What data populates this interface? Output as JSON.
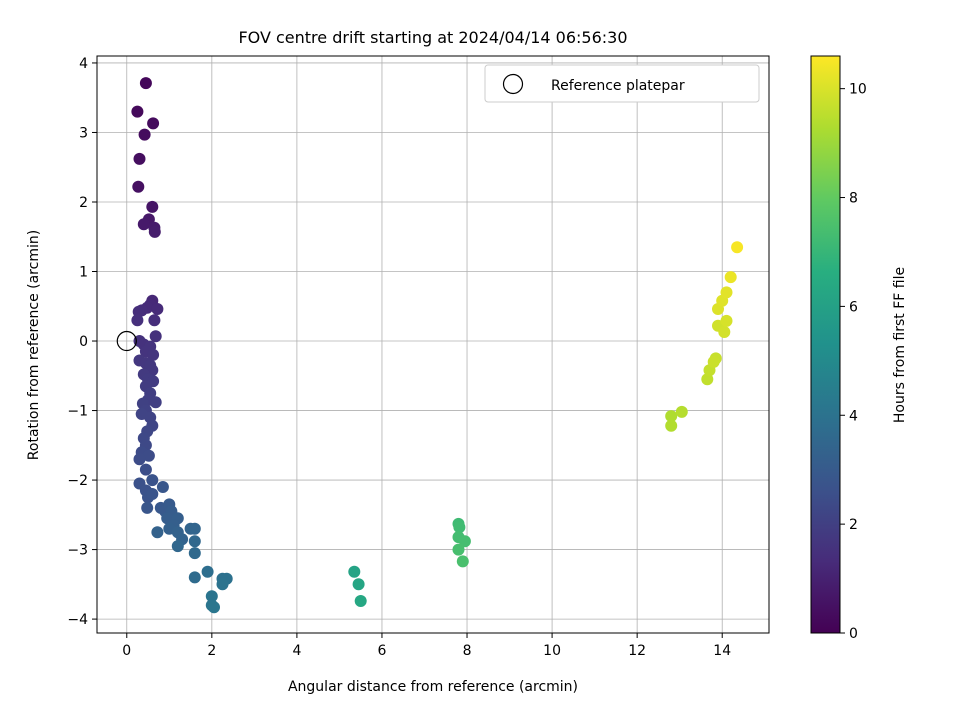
{
  "chart_data": {
    "type": "scatter",
    "title": "FOV centre drift starting at 2024/04/14 06:56:30",
    "xlabel": "Angular distance from reference (arcmin)",
    "ylabel": "Rotation from reference (arcmin)",
    "xlim": [
      -0.7,
      15.1
    ],
    "ylim": [
      -4.2,
      4.1
    ],
    "xticks": [
      0,
      2,
      4,
      6,
      8,
      10,
      12,
      14
    ],
    "yticks": [
      -4,
      -3,
      -2,
      -1,
      0,
      1,
      2,
      3,
      4
    ],
    "grid": true,
    "legend_position": "top-right",
    "reference": {
      "label": "Reference platepar",
      "x": 0,
      "y": 0
    },
    "colorbar": {
      "label": "Hours from first FF file",
      "range": [
        0,
        10.6
      ],
      "ticks": [
        0,
        2,
        4,
        6,
        8,
        10
      ],
      "colormap": "viridis"
    },
    "points": [
      [
        0.45,
        3.71,
        0.2
      ],
      [
        0.25,
        3.3,
        0.25
      ],
      [
        0.62,
        3.13,
        0.3
      ],
      [
        0.42,
        2.97,
        0.35
      ],
      [
        0.3,
        2.62,
        0.4
      ],
      [
        0.27,
        2.22,
        0.45
      ],
      [
        0.6,
        1.93,
        0.6
      ],
      [
        0.52,
        1.75,
        0.7
      ],
      [
        0.4,
        1.68,
        0.75
      ],
      [
        0.65,
        1.63,
        0.8
      ],
      [
        0.66,
        1.57,
        0.85
      ],
      [
        0.6,
        0.58,
        1.2
      ],
      [
        0.55,
        0.52,
        1.25
      ],
      [
        0.48,
        0.48,
        1.3
      ],
      [
        0.72,
        0.46,
        1.3
      ],
      [
        0.35,
        0.44,
        1.35
      ],
      [
        0.28,
        0.42,
        1.4
      ],
      [
        0.65,
        0.3,
        1.4
      ],
      [
        0.25,
        0.3,
        1.45
      ],
      [
        0.68,
        0.07,
        1.5
      ],
      [
        0.3,
        0.0,
        1.5
      ],
      [
        0.4,
        -0.05,
        1.55
      ],
      [
        0.55,
        -0.08,
        1.6
      ],
      [
        0.45,
        -0.15,
        1.6
      ],
      [
        0.62,
        -0.2,
        1.65
      ],
      [
        0.3,
        -0.28,
        1.7
      ],
      [
        0.45,
        -0.32,
        1.7
      ],
      [
        0.55,
        -0.35,
        1.75
      ],
      [
        0.6,
        -0.42,
        1.75
      ],
      [
        0.4,
        -0.48,
        1.8
      ],
      [
        0.5,
        -0.55,
        1.85
      ],
      [
        0.62,
        -0.58,
        1.85
      ],
      [
        0.45,
        -0.65,
        1.9
      ],
      [
        0.55,
        -0.75,
        1.95
      ],
      [
        0.5,
        -0.85,
        2.0
      ],
      [
        0.68,
        -0.88,
        2.0
      ],
      [
        0.38,
        -0.9,
        2.05
      ],
      [
        0.45,
        -1.0,
        2.1
      ],
      [
        0.35,
        -1.05,
        2.15
      ],
      [
        0.55,
        -1.1,
        2.15
      ],
      [
        0.6,
        -1.22,
        2.2
      ],
      [
        0.48,
        -1.3,
        2.25
      ],
      [
        0.4,
        -1.4,
        2.3
      ],
      [
        0.45,
        -1.5,
        2.35
      ],
      [
        0.35,
        -1.6,
        2.4
      ],
      [
        0.52,
        -1.65,
        2.45
      ],
      [
        0.3,
        -1.7,
        2.45
      ],
      [
        0.45,
        -1.85,
        2.5
      ],
      [
        0.3,
        -2.05,
        2.6
      ],
      [
        0.45,
        -2.15,
        2.65
      ],
      [
        0.6,
        -2.0,
        2.7
      ],
      [
        0.5,
        -2.25,
        2.7
      ],
      [
        0.6,
        -2.2,
        2.75
      ],
      [
        0.48,
        -2.4,
        2.8
      ],
      [
        0.85,
        -2.1,
        2.85
      ],
      [
        0.8,
        -2.4,
        2.9
      ],
      [
        0.9,
        -2.45,
        2.95
      ],
      [
        1.0,
        -2.35,
        3.0
      ],
      [
        1.05,
        -2.45,
        3.05
      ],
      [
        0.95,
        -2.55,
        3.1
      ],
      [
        1.2,
        -2.55,
        3.15
      ],
      [
        1.1,
        -2.65,
        3.2
      ],
      [
        1.0,
        -2.7,
        3.25
      ],
      [
        1.2,
        -2.75,
        3.3
      ],
      [
        0.72,
        -2.75,
        3.3
      ],
      [
        1.3,
        -2.85,
        3.35
      ],
      [
        1.5,
        -2.7,
        3.4
      ],
      [
        1.6,
        -2.7,
        3.45
      ],
      [
        1.2,
        -2.95,
        3.5
      ],
      [
        1.6,
        -2.88,
        3.55
      ],
      [
        1.6,
        -3.05,
        3.6
      ],
      [
        1.6,
        -3.4,
        3.7
      ],
      [
        1.9,
        -3.32,
        3.8
      ],
      [
        2.25,
        -3.42,
        3.9
      ],
      [
        2.35,
        -3.42,
        3.95
      ],
      [
        2.25,
        -3.5,
        4.0
      ],
      [
        2.0,
        -3.67,
        4.05
      ],
      [
        2.0,
        -3.8,
        4.1
      ],
      [
        2.05,
        -3.83,
        4.15
      ],
      [
        5.35,
        -3.32,
        6.1
      ],
      [
        5.45,
        -3.5,
        6.2
      ],
      [
        5.5,
        -3.74,
        6.3
      ],
      [
        7.8,
        -2.63,
        7.2
      ],
      [
        7.82,
        -2.68,
        7.25
      ],
      [
        7.8,
        -2.82,
        7.3
      ],
      [
        7.95,
        -2.88,
        7.35
      ],
      [
        7.8,
        -3.0,
        7.4
      ],
      [
        7.9,
        -3.17,
        7.45
      ],
      [
        12.8,
        -1.08,
        9.3
      ],
      [
        12.8,
        -1.22,
        9.35
      ],
      [
        13.05,
        -1.02,
        9.4
      ],
      [
        13.65,
        -0.55,
        9.6
      ],
      [
        13.7,
        -0.42,
        9.65
      ],
      [
        13.85,
        -0.25,
        9.7
      ],
      [
        13.8,
        -0.3,
        9.75
      ],
      [
        13.9,
        0.22,
        9.85
      ],
      [
        14.05,
        0.13,
        9.9
      ],
      [
        14.1,
        0.29,
        9.95
      ],
      [
        13.9,
        0.46,
        10.05
      ],
      [
        14.0,
        0.58,
        10.1
      ],
      [
        14.1,
        0.7,
        10.15
      ],
      [
        14.2,
        0.92,
        10.3
      ],
      [
        14.35,
        1.35,
        10.5
      ]
    ]
  }
}
